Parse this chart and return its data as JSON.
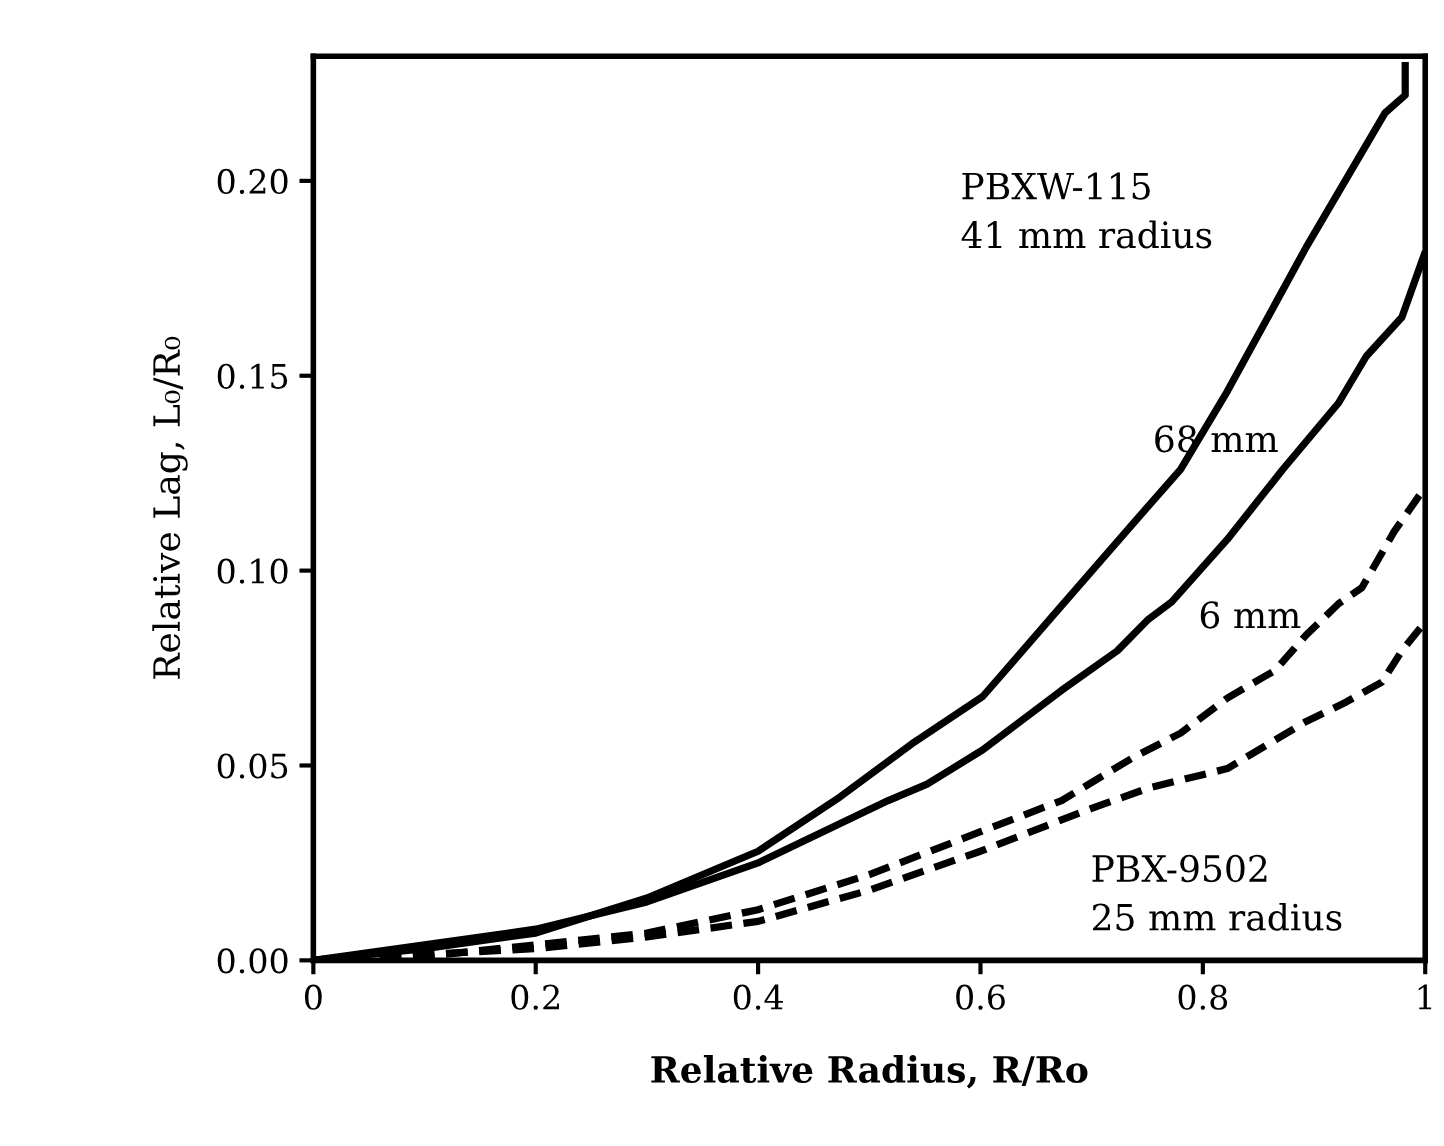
{
  "chart_data": {
    "type": "line",
    "xlabel": "Relative Radius, R/Ro",
    "ylabel": "Relative Lag, L₀/R₀",
    "xlim": [
      0,
      1
    ],
    "ylim": [
      0,
      0.232
    ],
    "xticks": [
      0,
      {
        "value": 0.2,
        "label": "0.2"
      },
      {
        "value": 0.4,
        "label": "0.4"
      },
      {
        "value": 0.6,
        "label": "0.6"
      },
      {
        "value": 0.8,
        "label": "0.8"
      },
      1
    ],
    "yticks": [
      {
        "value": 0,
        "label": "0.00"
      },
      {
        "value": 0.05,
        "label": "0.05"
      },
      {
        "value": 0.1,
        "label": "0.10"
      },
      {
        "value": 0.15,
        "label": "0.15"
      },
      {
        "value": 0.2,
        "label": "0.20"
      }
    ],
    "grid": false,
    "legend": false,
    "series": [
      {
        "name": "PBXW-115\n41 mm radius",
        "color": "#000000",
        "line_style": "solid",
        "x": [
          0,
          0.1,
          0.2,
          0.3,
          0.4,
          0.474,
          0.538,
          0.602,
          0.673,
          0.737,
          0.78,
          0.822,
          0.893,
          0.964,
          0.982,
          0.982
        ],
        "values": [
          0,
          0.003,
          0.007,
          0.016,
          0.028,
          0.042,
          0.0555,
          0.0677,
          0.091,
          0.112,
          0.126,
          0.146,
          0.183,
          0.2175,
          0.222,
          0.2296
        ]
      },
      {
        "name": "68 mm",
        "color": "#000000",
        "line_style": "solid",
        "x": [
          0,
          0.1,
          0.2,
          0.3,
          0.4,
          0.517,
          0.552,
          0.602,
          0.673,
          0.723,
          0.751,
          0.772,
          0.822,
          0.872,
          0.922,
          0.947,
          0.979,
          0.999
        ],
        "values": [
          0,
          0.004,
          0.008,
          0.015,
          0.025,
          0.041,
          0.0452,
          0.054,
          0.0693,
          0.0794,
          0.0875,
          0.092,
          0.108,
          0.126,
          0.143,
          0.155,
          0.165,
          0.181
        ]
      },
      {
        "name": "6 mm",
        "color": "#000000",
        "line_style": "dashed",
        "x": [
          0,
          0.1,
          0.2,
          0.3,
          0.4,
          0.5,
          0.6,
          0.673,
          0.737,
          0.78,
          0.822,
          0.865,
          0.893,
          0.922,
          0.943,
          0.972,
          0.996
        ],
        "values": [
          0,
          0.001,
          0.004,
          0.007,
          0.013,
          0.022,
          0.033,
          0.041,
          0.052,
          0.0583,
          0.0673,
          0.0744,
          0.0835,
          0.0915,
          0.0956,
          0.11,
          0.1198
        ]
      },
      {
        "name": "PBX-9502\n25 mm radius",
        "color": "#000000",
        "line_style": "dashed",
        "x": [
          0,
          0.2,
          0.3,
          0.4,
          0.5,
          0.6,
          0.7,
          0.751,
          0.822,
          0.893,
          0.929,
          0.961,
          0.979,
          0.999
        ],
        "values": [
          0,
          0.003,
          0.006,
          0.01,
          0.018,
          0.028,
          0.039,
          0.0442,
          0.0492,
          0.0613,
          0.0663,
          0.0714,
          0.0794,
          0.0865
        ]
      }
    ]
  }
}
